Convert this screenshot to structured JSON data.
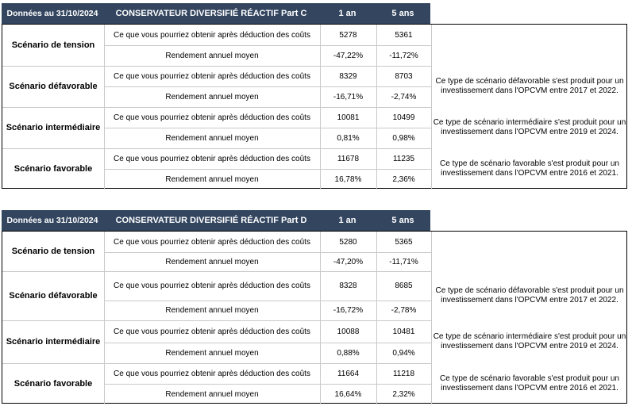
{
  "tables": [
    {
      "date_label": "Données au 31/10/2024",
      "title": "CONSERVATEUR DIVERSIFIÉ RÉACTIF Part C",
      "col_1an": "1 an",
      "col_5ans": "5 ans",
      "scenarios": [
        {
          "name": "Scénario de tension",
          "label_amount": "Ce que vous pourriez obtenir après déduction des coûts",
          "amount_1y": "5278",
          "amount_5y": "5361",
          "label_return": "Rendement annuel moyen",
          "return_1y": "-47,22%",
          "return_5y": "-11,72%",
          "note": ""
        },
        {
          "name": "Scénario défavorable",
          "label_amount": "Ce que vous pourriez obtenir après déduction des coûts",
          "amount_1y": "8329",
          "amount_5y": "8703",
          "label_return": "Rendement annuel moyen",
          "return_1y": "-16,71%",
          "return_5y": "-2,74%",
          "note": "Ce type de scénario défavorable s'est produit pour un investissement dans l'OPCVM entre 2017 et 2022."
        },
        {
          "name": "Scénario intermédiaire",
          "label_amount": "Ce que vous pourriez obtenir après déduction des coûts",
          "amount_1y": "10081",
          "amount_5y": "10499",
          "label_return": "Rendement annuel moyen",
          "return_1y": "0,81%",
          "return_5y": "0,98%",
          "note": "Ce type de scénario intermédiaire s'est produit pour un investissement dans l'OPCVM entre 2019 et 2024."
        },
        {
          "name": "Scénario favorable",
          "label_amount": "Ce que vous pourriez obtenir après déduction des coûts",
          "amount_1y": "11678",
          "amount_5y": "11235",
          "label_return": "Rendement annuel moyen",
          "return_1y": "16,78%",
          "return_5y": "2,36%",
          "note": "Ce type de scénario favorable s'est produit pour un investissement dans l'OPCVM entre 2016 et 2021."
        }
      ]
    },
    {
      "date_label": "Données au 31/10/2024",
      "title": "CONSERVATEUR DIVERSIFIÉ RÉACTIF Part D",
      "col_1an": "1 an",
      "col_5ans": "5 ans",
      "scenarios": [
        {
          "name": "Scénario de tension",
          "label_amount": "Ce que vous pourriez obtenir après déduction des coûts",
          "amount_1y": "5280",
          "amount_5y": "5365",
          "label_return": "Rendement annuel moyen",
          "return_1y": "-47,20%",
          "return_5y": "-11,71%",
          "note": ""
        },
        {
          "name": "Scénario défavorable",
          "label_amount": "Ce que vous pourriez obtenir après déduction des coûts",
          "amount_1y": "8328",
          "amount_5y": "8685",
          "label_return": "Rendement annuel moyen",
          "return_1y": "-16,72%",
          "return_5y": "-2,78%",
          "note": "Ce type de scénario défavorable s'est produit pour un investissement dans l'OPCVM entre 2017 et 2022."
        },
        {
          "name": "Scénario intermédiaire",
          "label_amount": "Ce que vous pourriez obtenir après déduction des coûts",
          "amount_1y": "10088",
          "amount_5y": "10481",
          "label_return": "Rendement annuel moyen",
          "return_1y": "0,88%",
          "return_5y": "0,94%",
          "note": "Ce type de scénario intermédiaire s'est produit pour un investissement dans l'OPCVM entre 2019 et 2024."
        },
        {
          "name": "Scénario favorable",
          "label_amount": "Ce que vous pourriez obtenir après déduction des coûts",
          "amount_1y": "11664",
          "amount_5y": "11218",
          "label_return": "Rendement annuel moyen",
          "return_1y": "16,64%",
          "return_5y": "2,32%",
          "note": "Ce type de scénario favorable s'est produit pour un investissement dans l'OPCVM entre 2016 et 2021."
        }
      ]
    }
  ],
  "colors": {
    "header_bg": "#33455f",
    "header_text": "#ffffff",
    "border": "#000000",
    "gridline": "#c9c9c9"
  }
}
